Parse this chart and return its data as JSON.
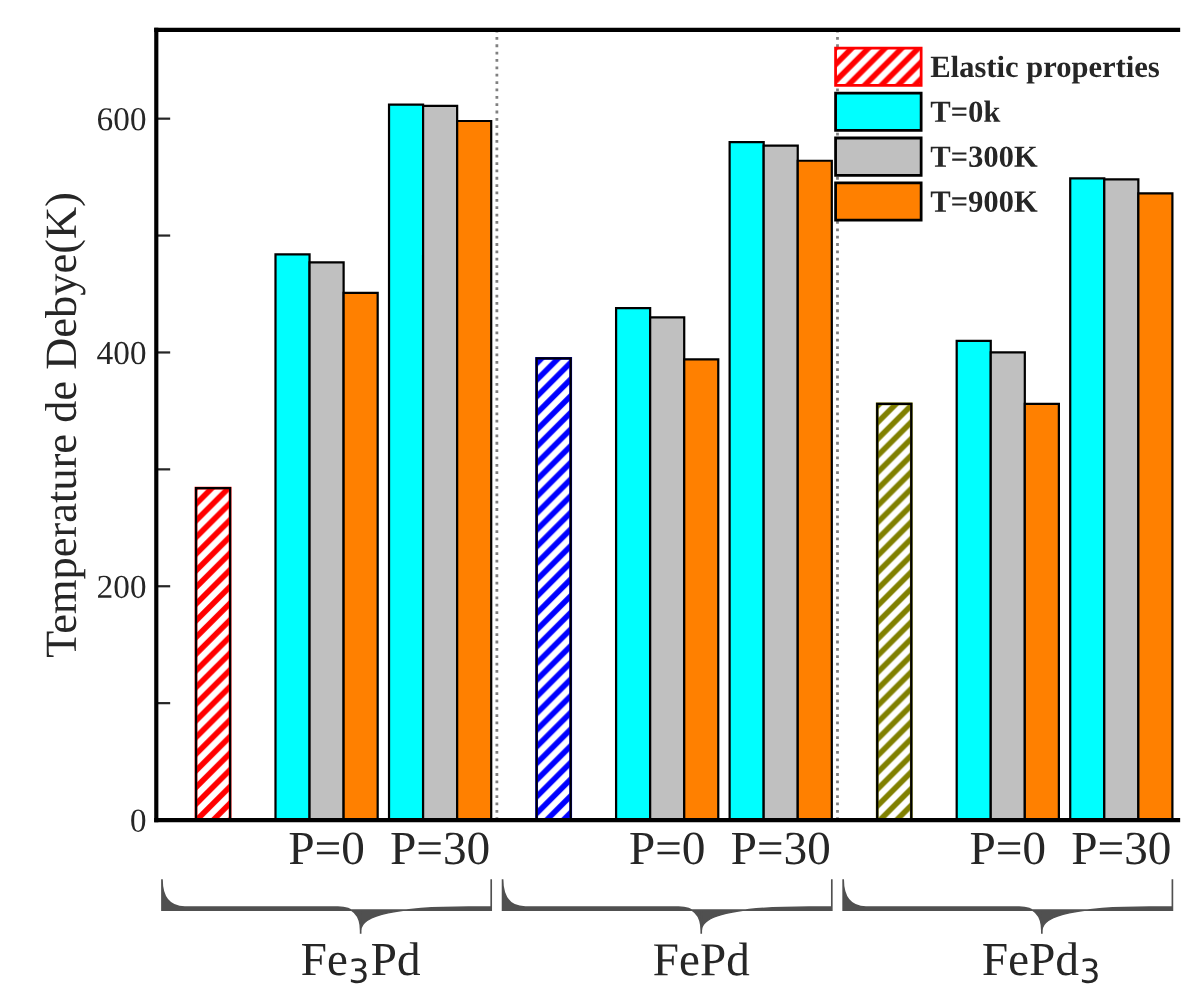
{
  "chart_data": {
    "type": "bar",
    "ylabel": "Temperature de Debye(K)",
    "categories": [
      null,
      "P=0",
      "P=30",
      null,
      "P=0",
      "P=30",
      null,
      "P=0",
      "P=30"
    ],
    "series": [
      {
        "name": "Elastic properties",
        "color": "#ff0000",
        "colors": [
          "#ff0000",
          null,
          null,
          "#0000ff",
          null,
          null,
          "#808000",
          null,
          null
        ],
        "values": [
          284,
          null,
          null,
          395,
          null,
          null,
          356,
          null,
          null
        ]
      },
      {
        "name": "T=0k",
        "color": "#00ffff",
        "values": [
          null,
          484,
          612,
          null,
          438,
          580,
          null,
          410,
          549
        ]
      },
      {
        "name": "T=300K",
        "color": "#c0c0c0",
        "values": [
          null,
          477,
          611,
          null,
          430,
          577,
          null,
          400,
          548
        ]
      },
      {
        "name": "T=900K",
        "color": "#ff8000",
        "values": [
          null,
          451,
          598,
          null,
          394,
          564,
          null,
          356,
          536
        ]
      }
    ],
    "ylim": [
      0,
      676
    ],
    "yticks": [
      0,
      {
        "value": 100,
        "label": null
      },
      200,
      {
        "value": 300,
        "label": null
      },
      400,
      {
        "value": 500,
        "label": null
      },
      600
    ],
    "annotations": [
      "Fe$_{3}$Pd",
      "FePd",
      "FePd$_{3}$"
    ],
    "legend": "top right",
    "grid": false
  }
}
